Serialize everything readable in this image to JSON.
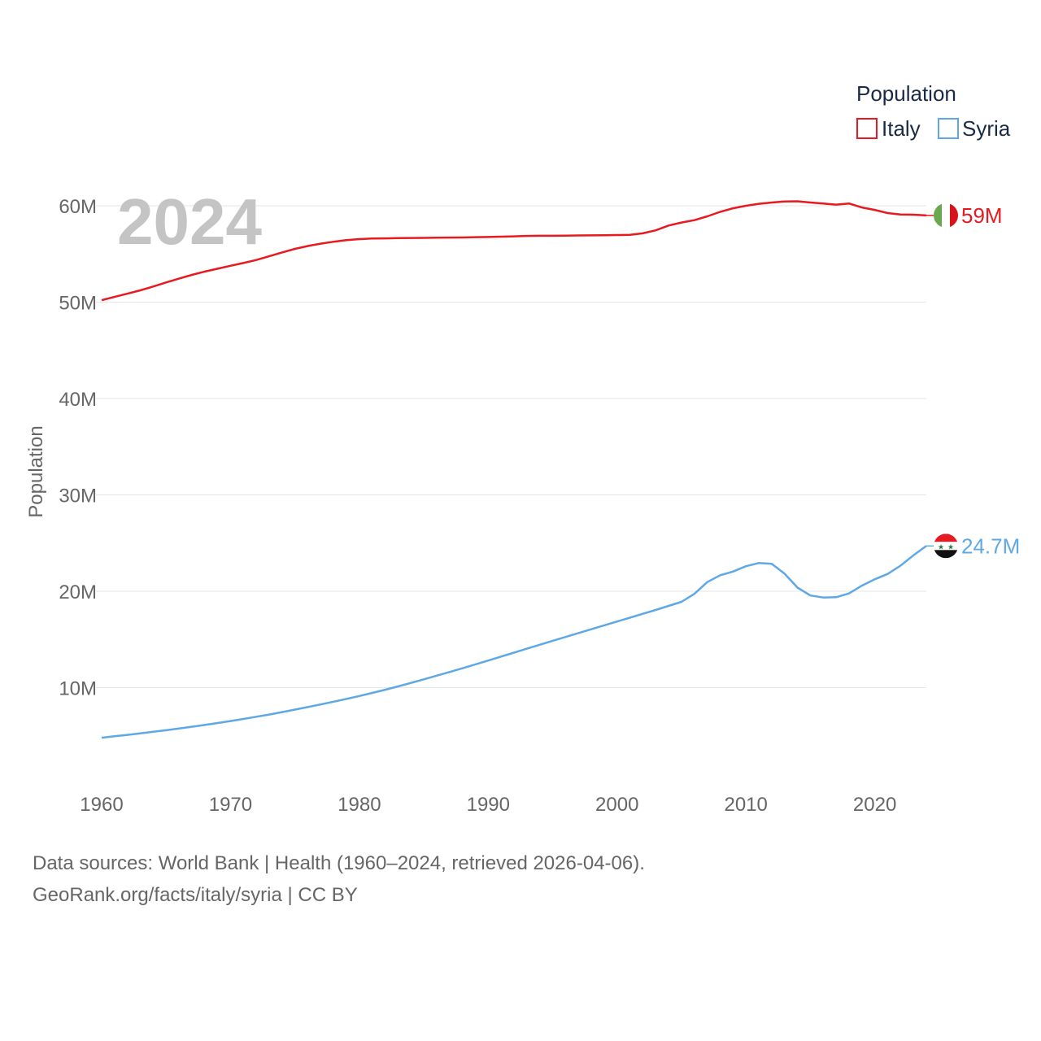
{
  "chart_data": {
    "type": "line",
    "title": "Population",
    "year_label": "2024",
    "ylabel": "Population",
    "xlim": [
      1960,
      2024
    ],
    "ylim": [
      0,
      65000000
    ],
    "x_ticks": [
      1960,
      1970,
      1980,
      1990,
      2000,
      2010,
      2020
    ],
    "y_ticks": [
      {
        "value": 10000000,
        "label": "10M"
      },
      {
        "value": 20000000,
        "label": "20M"
      },
      {
        "value": 30000000,
        "label": "30M"
      },
      {
        "value": 40000000,
        "label": "40M"
      },
      {
        "value": 50000000,
        "label": "50M"
      },
      {
        "value": 60000000,
        "label": "60M"
      }
    ],
    "grid": true,
    "legend": {
      "title": "Population",
      "position": "top-right"
    },
    "x": [
      1960,
      1961,
      1962,
      1963,
      1964,
      1965,
      1966,
      1967,
      1968,
      1969,
      1970,
      1971,
      1972,
      1973,
      1974,
      1975,
      1976,
      1977,
      1978,
      1979,
      1980,
      1981,
      1982,
      1983,
      1984,
      1985,
      1986,
      1987,
      1988,
      1989,
      1990,
      1991,
      1992,
      1993,
      1994,
      1995,
      1996,
      1997,
      1998,
      1999,
      2000,
      2001,
      2002,
      2003,
      2004,
      2005,
      2006,
      2007,
      2008,
      2009,
      2010,
      2011,
      2012,
      2013,
      2014,
      2015,
      2016,
      2017,
      2018,
      2019,
      2020,
      2021,
      2022,
      2023,
      2024
    ],
    "series": [
      {
        "name": "Italy",
        "color": "#e8191f",
        "end_label": "59M",
        "flag": "italy-flag",
        "values": [
          50200000,
          50540000,
          50880000,
          51220000,
          51620000,
          52040000,
          52440000,
          52830000,
          53170000,
          53470000,
          53770000,
          54060000,
          54370000,
          54760000,
          55160000,
          55530000,
          55820000,
          56070000,
          56270000,
          56430000,
          56540000,
          56600000,
          56620000,
          56640000,
          56660000,
          56670000,
          56690000,
          56700000,
          56710000,
          56740000,
          56760000,
          56790000,
          56830000,
          56870000,
          56890000,
          56890000,
          56900000,
          56920000,
          56930000,
          56940000,
          56960000,
          56980000,
          57140000,
          57450000,
          57950000,
          58260000,
          58510000,
          58900000,
          59370000,
          59740000,
          60000000,
          60200000,
          60340000,
          60440000,
          60460000,
          60340000,
          60230000,
          60120000,
          60240000,
          59820000,
          59570000,
          59240000,
          59100000,
          59070000,
          59000000
        ]
      },
      {
        "name": "Syria",
        "color": "#5fa8e6",
        "end_label": "24.7M",
        "flag": "syria-flag",
        "values": [
          4800000,
          4950000,
          5100000,
          5250000,
          5420000,
          5580000,
          5760000,
          5940000,
          6130000,
          6330000,
          6530000,
          6750000,
          6980000,
          7210000,
          7460000,
          7720000,
          7980000,
          8260000,
          8540000,
          8830000,
          9130000,
          9450000,
          9780000,
          10130000,
          10490000,
          10860000,
          11240000,
          11620000,
          12010000,
          12410000,
          12810000,
          13220000,
          13630000,
          14040000,
          14450000,
          14860000,
          15260000,
          15660000,
          16060000,
          16460000,
          16860000,
          17260000,
          17660000,
          18060000,
          18480000,
          18900000,
          19730000,
          20950000,
          21660000,
          22040000,
          22600000,
          22930000,
          22840000,
          21820000,
          20380000,
          19560000,
          19350000,
          19380000,
          19770000,
          20580000,
          21240000,
          21800000,
          22660000,
          23730000,
          24700000
        ]
      }
    ],
    "source_line1": "Data sources: World Bank | Health (1960–2024, retrieved 2026-04-06).",
    "source_line2": "GeoRank.org/facts/italy/syria | CC BY"
  }
}
